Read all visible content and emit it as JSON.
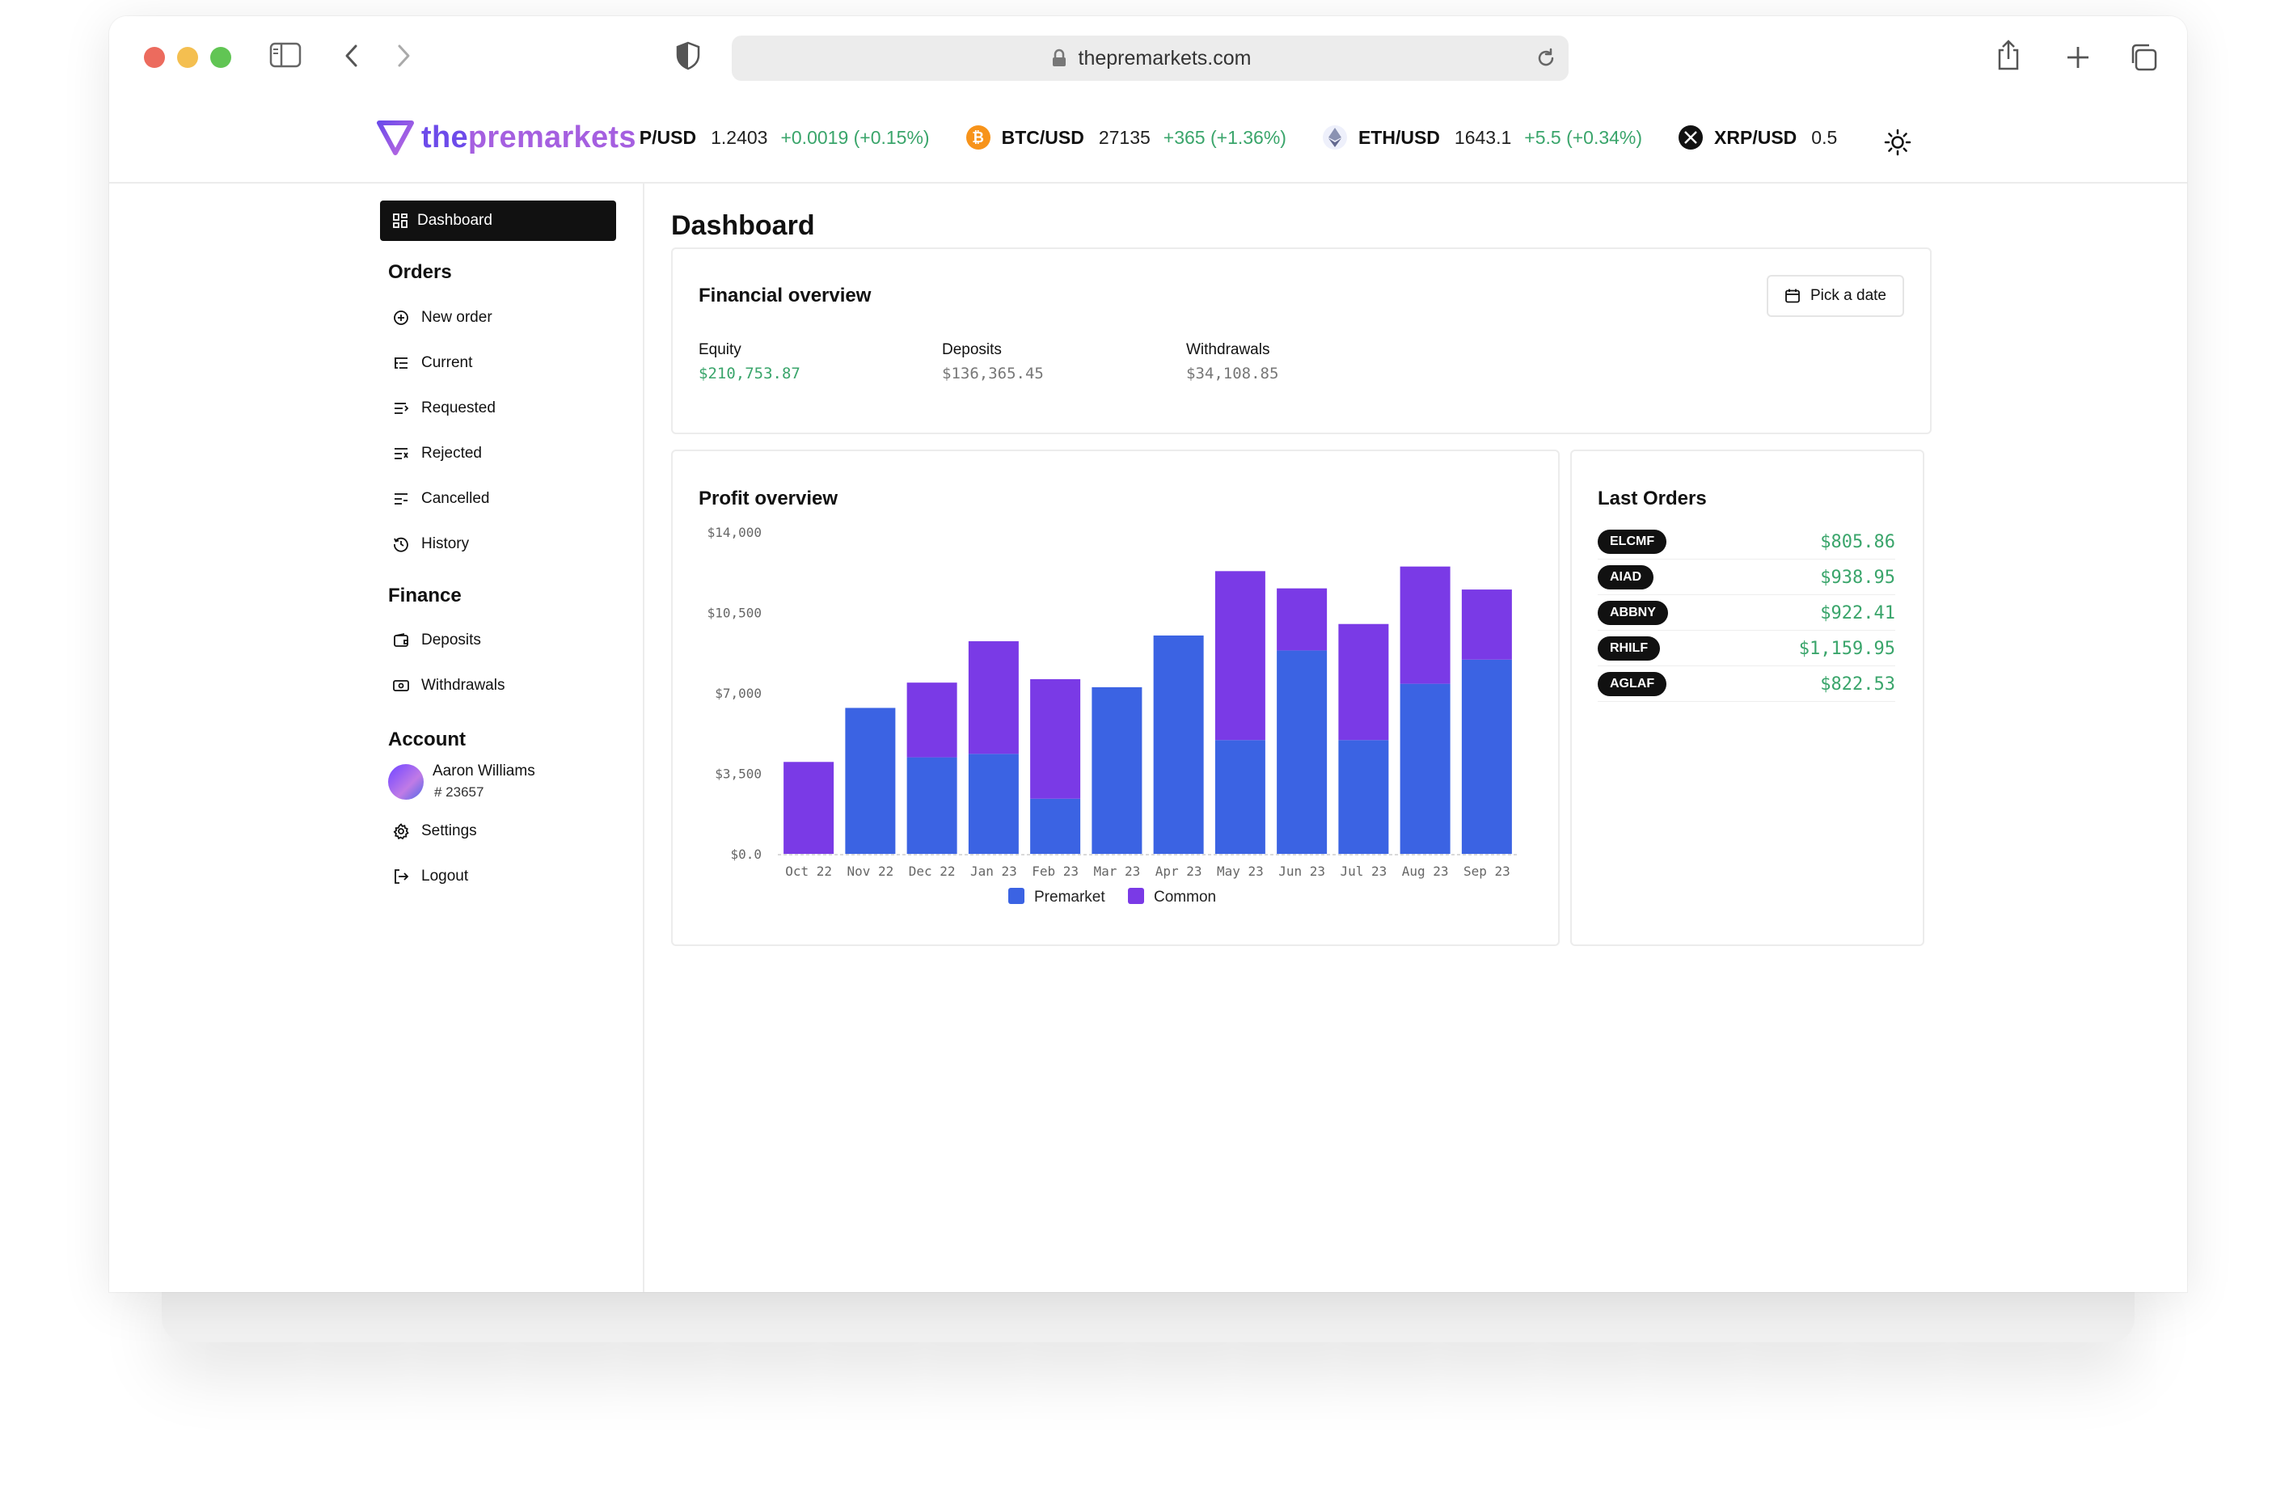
{
  "browser": {
    "url": "thepremarkets.com"
  },
  "brand": {
    "logo_the": "the",
    "logo_rest": "premarkets",
    "accent": "#6d4bea",
    "positive": "#3aa56b"
  },
  "ticker": [
    {
      "symbol": "3P/USD",
      "price": "1.2403",
      "change": "+0.0019 (+0.15%)",
      "icon": ""
    },
    {
      "symbol": "BTC/USD",
      "price": "27135",
      "change": "+365 (+1.36%)",
      "icon": "bitcoin-icon"
    },
    {
      "symbol": "ETH/USD",
      "price": "1643.1",
      "change": "+5.5 (+0.34%)",
      "icon": "ethereum-icon"
    },
    {
      "symbol": "XRP/USD",
      "price": "0.5",
      "change": "",
      "icon": "xrp-icon"
    }
  ],
  "sidebar": {
    "dashboard": "Dashboard",
    "orders_title": "Orders",
    "orders": [
      "New order",
      "Current",
      "Requested",
      "Rejected",
      "Cancelled",
      "History"
    ],
    "finance_title": "Finance",
    "finance": [
      "Deposits",
      "Withdrawals"
    ],
    "account_title": "Account",
    "user_name": "Aaron Williams",
    "user_id": "# 23657",
    "settings": "Settings",
    "logout": "Logout"
  },
  "main": {
    "title": "Dashboard",
    "financial": {
      "title": "Financial overview",
      "pick_date": "Pick a date",
      "equity_label": "Equity",
      "equity_value": "$210,753.87",
      "deposits_label": "Deposits",
      "deposits_value": "$136,365.45",
      "withdrawals_label": "Withdrawals",
      "withdrawals_value": "$34,108.85"
    },
    "profit_title": "Profit overview",
    "last_orders_title": "Last Orders",
    "last_orders": [
      {
        "ticker": "ELCMF",
        "amount": "$805.86"
      },
      {
        "ticker": "AIAD",
        "amount": "$938.95"
      },
      {
        "ticker": "ABBNY",
        "amount": "$922.41"
      },
      {
        "ticker": "RHILF",
        "amount": "$1,159.95"
      },
      {
        "ticker": "AGLAF",
        "amount": "$822.53"
      }
    ]
  },
  "chart_data": {
    "type": "bar",
    "stacked": true,
    "categories": [
      "Oct 22",
      "Nov 22",
      "Dec 22",
      "Jan 23",
      "Feb 23",
      "Mar 23",
      "Apr 23",
      "May 23",
      "Jun 23",
      "Jul 23",
      "Aug 23",
      "Sep 23"
    ],
    "series": [
      {
        "name": "Premarket",
        "color": "#3b63e3",
        "values": [
          0,
          6350,
          4200,
          4350,
          2400,
          7250,
          9500,
          4950,
          8850,
          4950,
          7400,
          8450
        ]
      },
      {
        "name": "Common",
        "color": "#7a3ae6",
        "values": [
          4000,
          0,
          3250,
          4900,
          5200,
          0,
          0,
          7350,
          2700,
          5050,
          5100,
          3050
        ]
      }
    ],
    "yticks": [
      "$0.0",
      "$3,500",
      "$7,000",
      "$10,500",
      "$14,000"
    ],
    "ylim": [
      0,
      14000
    ],
    "grid": false,
    "legend": "bottom"
  }
}
